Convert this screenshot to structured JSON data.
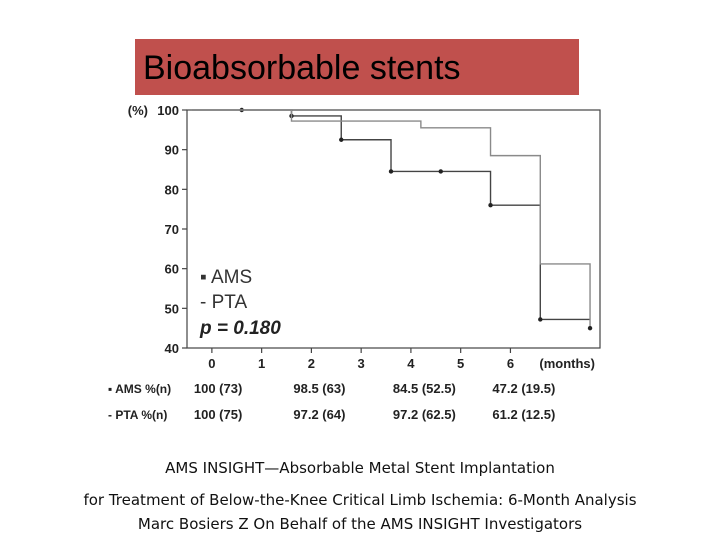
{
  "slide": {
    "title": "Bioabsorbable stents",
    "captions": [
      "AMS INSIGHT—Absorbable  Metal  Stent Implantation",
      "for Treatment of Below-the-Knee Critical Limb Ischemia: 6-Month Analysis",
      "Marc Bosiers Z  On Behalf of the AMS INSIGHT Investigators"
    ],
    "colors": {
      "title_bar": "#c0504d"
    }
  },
  "chart_data": {
    "type": "line",
    "subtype": "kaplan-meier step curve",
    "ylabel": "(%)",
    "xlabel": "(months)",
    "xlim": [
      -0.5,
      7.8
    ],
    "ylim": [
      40,
      100
    ],
    "yticks": [
      40,
      50,
      60,
      70,
      80,
      90,
      100
    ],
    "xticks": [
      0,
      1,
      2,
      3,
      4,
      5,
      6
    ],
    "legend": {
      "placement": "bottom-left",
      "entries": [
        "▪ AMS",
        "- PTA"
      ],
      "p_value": "p = 0.180"
    },
    "series": [
      {
        "name": "AMS",
        "points": [
          [
            -0.4,
            100
          ],
          [
            0.6,
            100
          ],
          [
            1.6,
            98.5
          ],
          [
            2.6,
            92.5
          ],
          [
            3.6,
            84.5
          ],
          [
            4.6,
            84.5
          ],
          [
            5.6,
            76
          ],
          [
            6.6,
            47.2
          ],
          [
            7.6,
            47.2
          ]
        ],
        "markers": [
          [
            0.6,
            100
          ],
          [
            1.6,
            98.5
          ],
          [
            2.6,
            92.5
          ],
          [
            3.6,
            84.5
          ],
          [
            4.6,
            84.5
          ],
          [
            5.6,
            76
          ],
          [
            6.6,
            47.2
          ]
        ]
      },
      {
        "name": "PTA",
        "points": [
          [
            -0.4,
            100
          ],
          [
            1.6,
            100
          ],
          [
            1.6,
            97.2
          ],
          [
            4.2,
            97.2
          ],
          [
            4.2,
            95.5
          ],
          [
            5.6,
            95.5
          ],
          [
            5.6,
            88.5
          ],
          [
            6.6,
            88.5
          ],
          [
            6.6,
            61.2
          ],
          [
            7.6,
            61.2
          ],
          [
            7.6,
            45
          ]
        ],
        "markers": [
          [
            7.6,
            45
          ]
        ]
      }
    ],
    "table": {
      "rows": [
        {
          "label": "▪ AMS %(n)",
          "values": [
            "100 (73)",
            "98.5 (63)",
            "84.5 (52.5)",
            "47.2 (19.5)"
          ]
        },
        {
          "label": "- PTA %(n)",
          "values": [
            "100 (75)",
            "97.2 (64)",
            "97.2 (62.5)",
            "61.2 (12.5)"
          ]
        }
      ],
      "columns_at_x": [
        0,
        2,
        4,
        6
      ]
    }
  }
}
